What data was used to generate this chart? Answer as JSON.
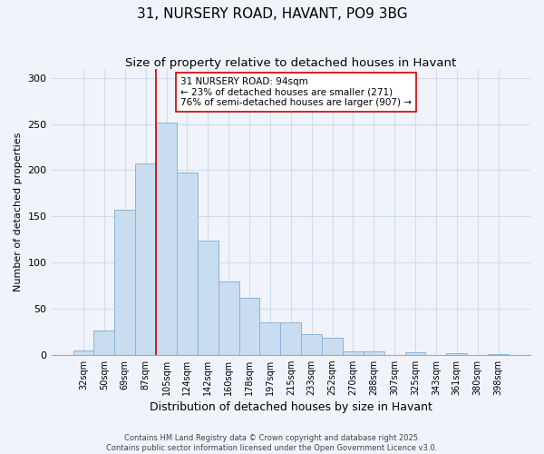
{
  "title": "31, NURSERY ROAD, HAVANT, PO9 3BG",
  "subtitle": "Size of property relative to detached houses in Havant",
  "xlabel": "Distribution of detached houses by size in Havant",
  "ylabel": "Number of detached properties",
  "bar_labels": [
    "32sqm",
    "50sqm",
    "69sqm",
    "87sqm",
    "105sqm",
    "124sqm",
    "142sqm",
    "160sqm",
    "178sqm",
    "197sqm",
    "215sqm",
    "233sqm",
    "252sqm",
    "270sqm",
    "288sqm",
    "307sqm",
    "325sqm",
    "343sqm",
    "361sqm",
    "380sqm",
    "398sqm"
  ],
  "bar_values": [
    5,
    26,
    157,
    207,
    251,
    197,
    124,
    79,
    62,
    35,
    35,
    22,
    18,
    4,
    4,
    0,
    3,
    0,
    2,
    0,
    1
  ],
  "bar_color": "#c9ddf0",
  "bar_edge_color": "#8ab4d8",
  "line_color": "#cc0000",
  "line_x_index": 3.5,
  "annotation_text": "31 NURSERY ROAD: 94sqm\n← 23% of detached houses are smaller (271)\n76% of semi-detached houses are larger (907) →",
  "annotation_box_color": "#ffffff",
  "annotation_box_edge": "#cc0000",
  "ylim": [
    0,
    310
  ],
  "yticks": [
    0,
    50,
    100,
    150,
    200,
    250,
    300
  ],
  "background_color": "#f0f4fa",
  "grid_color": "#d0dcee",
  "title_fontsize": 11,
  "subtitle_fontsize": 9.5,
  "axis_label_fontsize": 8,
  "tick_fontsize": 7,
  "annotation_fontsize": 7.5,
  "footnote_fontsize": 6,
  "footnote_line1": "Contains HM Land Registry data © Crown copyright and database right 2025.",
  "footnote_line2": "Contains public sector information licensed under the Open Government Licence v3.0."
}
